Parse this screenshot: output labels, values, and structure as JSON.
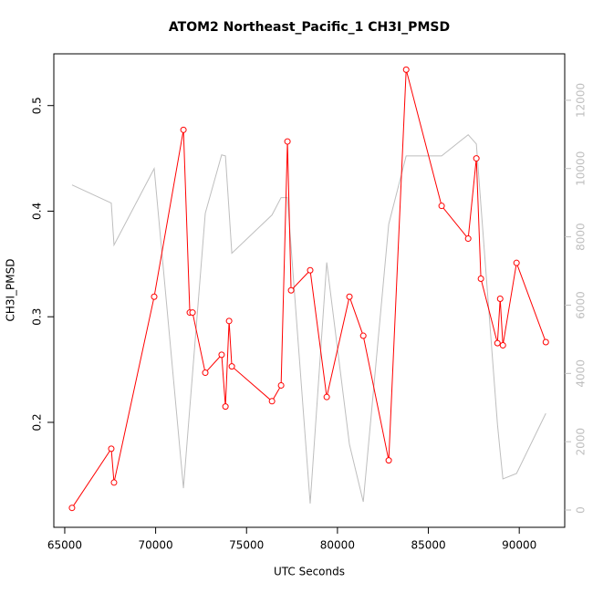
{
  "chart_data": {
    "type": "line",
    "title": "ATOM2 Northeast_Pacific_1 CH3I_PMSD",
    "xlabel": "UTC Seconds",
    "ylabel": "CH3I_PMSD",
    "x": [
      65400,
      67560,
      67710,
      69920,
      71530,
      71880,
      72030,
      72730,
      73630,
      73840,
      74040,
      74190,
      76400,
      76900,
      77250,
      77450,
      78500,
      79410,
      80660,
      81420,
      82820,
      83780,
      85730,
      87190,
      87640,
      87890,
      88800,
      88950,
      89100,
      89850,
      91460
    ],
    "series": [
      {
        "color": "#ff0000",
        "markers": true,
        "values": [
          0.119,
          0.175,
          0.143,
          0.319,
          0.477,
          0.304,
          0.304,
          0.247,
          0.264,
          0.215,
          0.296,
          0.253,
          0.22,
          0.235,
          0.466,
          0.325,
          0.344,
          0.224,
          0.319,
          0.282,
          0.164,
          0.534,
          0.405,
          0.374,
          0.45,
          0.336,
          0.275,
          0.317,
          0.273,
          0.351,
          0.276
        ]
      },
      {
        "color": "#bebebe",
        "axis": "y2",
        "markers": false,
        "values": [
          9520,
          8990,
          7760,
          10000,
          640,
          3000,
          4000,
          8690,
          10400,
          10370,
          8750,
          7520,
          8640,
          9150,
          9150,
          7700,
          190,
          7250,
          1920,
          240,
          8370,
          10370,
          10370,
          10990,
          10720,
          8930,
          2510,
          1700,
          910,
          1070,
          2830
        ]
      }
    ],
    "xlim": [
      64400,
      92500
    ],
    "xticks": [
      65000,
      70000,
      75000,
      80000,
      85000,
      90000
    ],
    "ylim": [
      0.1006,
      0.549
    ],
    "yticks": [
      0.2,
      0.3,
      0.4,
      0.5
    ],
    "y2lim": [
      -507,
      13360
    ],
    "y2ticks": [
      0,
      2000,
      4000,
      6000,
      8000,
      10000,
      12000
    ],
    "y2tick_color": "#bebebe"
  }
}
